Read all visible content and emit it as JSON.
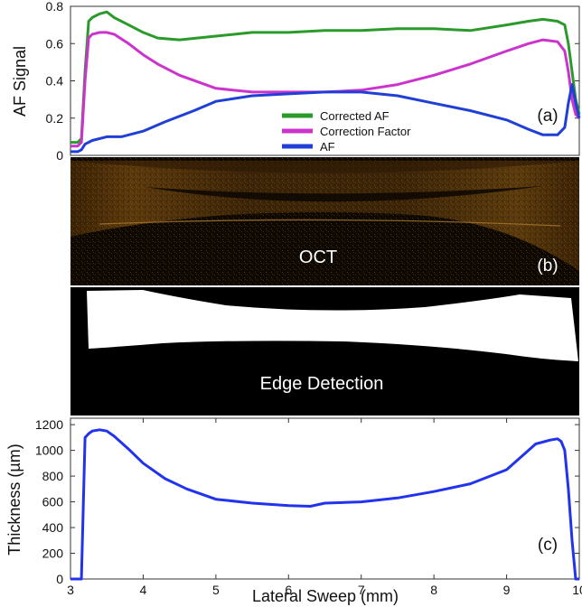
{
  "colors": {
    "corrected_af": "#2a9a2a",
    "correction_factor": "#cc33cc",
    "af": "#1f3fd6",
    "thickness": "#2233ee",
    "axes": "#333333"
  },
  "panel_a": {
    "tag": "(a)",
    "ylabel": "AF Signal",
    "yticks": [
      "0",
      "0.2",
      "0.4",
      "0.6",
      "0.8"
    ],
    "legend": [
      "Corrected AF",
      "Correction Factor",
      "AF"
    ]
  },
  "panel_b": {
    "label": "OCT",
    "tag": "(b)"
  },
  "panel_edge": {
    "label": "Edge Detection"
  },
  "panel_c": {
    "tag": "(c)",
    "ylabel": "Thickness (µm)",
    "yticks": [
      "0",
      "200",
      "400",
      "600",
      "800",
      "1000",
      "1200"
    ],
    "xlabel": "Lateral Sweep (mm)",
    "xticks": [
      "3",
      "4",
      "5",
      "6",
      "7",
      "8",
      "9",
      "10"
    ]
  },
  "chart_data": [
    {
      "type": "line",
      "ylabel": "AF Signal",
      "xlim": [
        3,
        10
      ],
      "ylim": [
        0,
        0.8
      ],
      "grid": false,
      "legend_position": "center",
      "series": [
        {
          "name": "Corrected AF",
          "color": "#2a9a2a",
          "x": [
            3.0,
            3.1,
            3.15,
            3.2,
            3.25,
            3.3,
            3.4,
            3.5,
            3.6,
            3.8,
            4.0,
            4.2,
            4.5,
            5.0,
            5.5,
            6.0,
            6.5,
            7.0,
            7.5,
            8.0,
            8.5,
            9.0,
            9.3,
            9.5,
            9.7,
            9.8,
            9.85,
            9.9,
            9.95,
            10.0
          ],
          "y": [
            0.07,
            0.07,
            0.09,
            0.45,
            0.72,
            0.74,
            0.76,
            0.77,
            0.74,
            0.7,
            0.66,
            0.63,
            0.62,
            0.64,
            0.66,
            0.66,
            0.67,
            0.67,
            0.68,
            0.68,
            0.67,
            0.7,
            0.72,
            0.73,
            0.72,
            0.7,
            0.6,
            0.45,
            0.3,
            0.22
          ]
        },
        {
          "name": "Correction Factor",
          "color": "#cc33cc",
          "x": [
            3.0,
            3.1,
            3.15,
            3.2,
            3.25,
            3.3,
            3.4,
            3.5,
            3.6,
            3.8,
            4.0,
            4.2,
            4.5,
            5.0,
            5.5,
            6.0,
            6.5,
            7.0,
            7.5,
            8.0,
            8.5,
            9.0,
            9.3,
            9.5,
            9.7,
            9.8,
            9.85,
            9.9,
            9.95,
            10.0
          ],
          "y": [
            0.05,
            0.05,
            0.07,
            0.4,
            0.63,
            0.65,
            0.66,
            0.66,
            0.65,
            0.6,
            0.54,
            0.49,
            0.43,
            0.36,
            0.34,
            0.34,
            0.34,
            0.35,
            0.38,
            0.43,
            0.49,
            0.56,
            0.6,
            0.62,
            0.61,
            0.56,
            0.45,
            0.3,
            0.22,
            0.2
          ]
        },
        {
          "name": "AF",
          "color": "#1f3fd6",
          "x": [
            3.0,
            3.1,
            3.15,
            3.2,
            3.3,
            3.5,
            3.7,
            4.0,
            4.3,
            4.7,
            5.0,
            5.5,
            6.0,
            6.5,
            7.0,
            7.5,
            8.0,
            8.5,
            9.0,
            9.3,
            9.5,
            9.7,
            9.8,
            9.85,
            9.9,
            9.95,
            10.0
          ],
          "y": [
            0.02,
            0.02,
            0.03,
            0.06,
            0.08,
            0.1,
            0.1,
            0.13,
            0.18,
            0.24,
            0.29,
            0.32,
            0.33,
            0.34,
            0.34,
            0.32,
            0.28,
            0.24,
            0.19,
            0.14,
            0.11,
            0.11,
            0.15,
            0.28,
            0.38,
            0.28,
            0.2
          ]
        }
      ]
    },
    {
      "type": "line",
      "xlabel": "Lateral Sweep (mm)",
      "ylabel": "Thickness (µm)",
      "xlim": [
        3,
        10
      ],
      "ylim": [
        0,
        1250
      ],
      "grid": false,
      "series": [
        {
          "color": "#2233ee",
          "x": [
            3.0,
            3.1,
            3.15,
            3.2,
            3.25,
            3.3,
            3.4,
            3.5,
            3.6,
            3.8,
            4.0,
            4.3,
            4.6,
            5.0,
            5.5,
            6.0,
            6.3,
            6.5,
            7.0,
            7.5,
            8.0,
            8.5,
            9.0,
            9.2,
            9.4,
            9.6,
            9.7,
            9.75,
            9.8,
            9.85,
            9.9,
            9.95,
            10.0
          ],
          "y": [
            0,
            0,
            0,
            1100,
            1130,
            1150,
            1160,
            1150,
            1110,
            1010,
            900,
            780,
            700,
            620,
            590,
            570,
            565,
            590,
            600,
            630,
            680,
            740,
            850,
            950,
            1050,
            1080,
            1090,
            1070,
            1000,
            700,
            300,
            0,
            0
          ]
        }
      ]
    }
  ]
}
